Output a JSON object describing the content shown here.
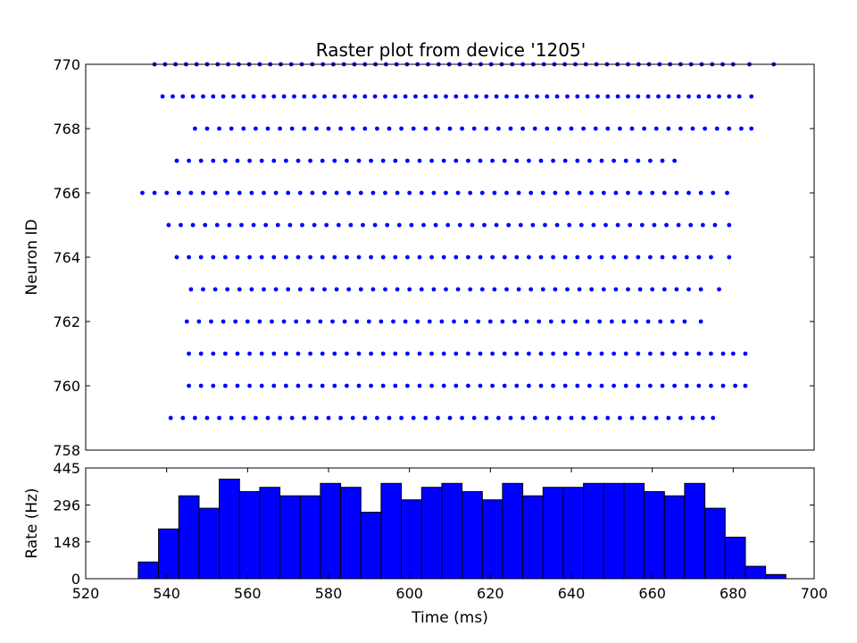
{
  "chart_data": [
    {
      "type": "scatter",
      "title": "Raster plot from device '1205'",
      "xlabel": "",
      "ylabel": "Neuron ID",
      "xlim": [
        520,
        700
      ],
      "ylim": [
        758,
        770
      ],
      "yticks": [
        758,
        760,
        762,
        764,
        766,
        768,
        770
      ],
      "grid": false,
      "marker_color": "#0000ff",
      "series": [
        {
          "neuron": 770,
          "x": [
            537.0,
            539.6,
            542.2,
            544.8,
            547.4,
            550.0,
            552.6,
            555.2,
            557.8,
            560.4,
            563.0,
            565.6,
            568.2,
            570.8,
            573.4,
            576.0,
            578.6,
            581.2,
            583.8,
            586.4,
            589.0,
            591.6,
            594.2,
            596.8,
            599.4,
            602.0,
            604.6,
            607.2,
            609.8,
            612.4,
            615.0,
            617.6,
            620.2,
            622.8,
            625.4,
            628.0,
            630.6,
            633.2,
            635.8,
            638.4,
            641.0,
            643.6,
            646.2,
            648.8,
            651.4,
            654.0,
            656.6,
            659.2,
            661.8,
            664.4,
            667.0,
            669.6,
            672.2,
            674.8,
            677.4,
            680.0,
            684.0,
            690.0
          ]
        },
        {
          "neuron": 769,
          "x": [
            539.0,
            541.5,
            544.0,
            546.5,
            549.0,
            551.5,
            554.0,
            556.5,
            559.0,
            561.5,
            564.0,
            566.5,
            569.0,
            571.5,
            574.0,
            576.5,
            579.0,
            581.5,
            584.0,
            586.5,
            589.0,
            591.5,
            594.0,
            596.5,
            599.0,
            601.5,
            604.0,
            606.5,
            609.0,
            611.5,
            614.0,
            616.5,
            619.0,
            621.5,
            624.0,
            626.5,
            629.0,
            631.5,
            634.0,
            636.5,
            639.0,
            641.5,
            644.0,
            646.5,
            649.0,
            651.5,
            654.0,
            656.5,
            659.0,
            661.5,
            664.0,
            666.5,
            669.0,
            671.5,
            674.0,
            676.5,
            679.0,
            681.5,
            684.5
          ]
        },
        {
          "neuron": 768,
          "x": [
            547.0,
            550.0,
            553.0,
            556.0,
            559.0,
            562.0,
            565.0,
            568.0,
            571.0,
            574.0,
            577.0,
            580.0,
            583.0,
            586.0,
            589.0,
            592.0,
            595.0,
            598.0,
            601.0,
            604.0,
            607.0,
            610.0,
            613.0,
            616.0,
            619.0,
            622.0,
            625.0,
            628.0,
            631.0,
            634.0,
            637.0,
            640.0,
            643.0,
            646.0,
            649.0,
            652.0,
            655.0,
            658.0,
            661.0,
            664.0,
            667.0,
            670.0,
            673.0,
            676.0,
            679.0,
            682.0,
            684.5
          ]
        },
        {
          "neuron": 767,
          "x": [
            542.5,
            545.5,
            548.5,
            551.5,
            554.5,
            557.5,
            560.5,
            563.5,
            566.5,
            569.5,
            572.5,
            575.5,
            578.5,
            581.5,
            584.5,
            587.5,
            590.5,
            593.5,
            596.5,
            599.5,
            602.5,
            605.5,
            608.5,
            611.5,
            614.5,
            617.5,
            620.5,
            623.5,
            626.5,
            629.5,
            632.5,
            635.5,
            638.5,
            641.5,
            644.5,
            647.5,
            650.5,
            653.5,
            656.5,
            659.5,
            662.5,
            665.5
          ]
        },
        {
          "neuron": 766,
          "x": [
            534.0,
            537.0,
            540.0,
            543.0,
            546.0,
            549.0,
            552.0,
            555.0,
            558.0,
            561.0,
            564.0,
            567.0,
            570.0,
            573.0,
            576.0,
            579.0,
            582.0,
            585.0,
            588.0,
            591.0,
            594.0,
            597.0,
            600.0,
            603.0,
            606.0,
            609.0,
            612.0,
            615.0,
            618.0,
            621.0,
            624.0,
            627.0,
            630.0,
            633.0,
            636.0,
            639.0,
            642.0,
            645.0,
            648.0,
            651.0,
            654.0,
            657.0,
            660.0,
            663.0,
            666.0,
            669.0,
            672.0,
            675.0,
            678.5
          ]
        },
        {
          "neuron": 765,
          "x": [
            540.5,
            543.5,
            546.5,
            549.5,
            552.5,
            555.5,
            558.5,
            561.5,
            564.5,
            567.5,
            570.5,
            573.5,
            576.5,
            579.5,
            582.5,
            585.5,
            588.5,
            591.5,
            594.5,
            597.5,
            600.5,
            603.5,
            606.5,
            609.5,
            612.5,
            615.5,
            618.5,
            621.5,
            624.5,
            627.5,
            630.5,
            633.5,
            636.5,
            639.5,
            642.5,
            645.5,
            648.5,
            651.5,
            654.5,
            657.5,
            660.5,
            663.5,
            666.5,
            669.5,
            672.5,
            675.5,
            679.0
          ]
        },
        {
          "neuron": 764,
          "x": [
            542.5,
            545.5,
            548.5,
            551.5,
            554.5,
            557.5,
            560.5,
            563.5,
            566.5,
            569.5,
            572.5,
            575.5,
            578.5,
            581.5,
            584.5,
            587.5,
            590.5,
            593.5,
            596.5,
            599.5,
            602.5,
            605.5,
            608.5,
            611.5,
            614.5,
            617.5,
            620.5,
            623.5,
            626.5,
            629.5,
            632.5,
            635.5,
            638.5,
            641.5,
            644.5,
            647.5,
            650.5,
            653.5,
            656.5,
            659.5,
            662.5,
            665.5,
            668.5,
            671.5,
            674.5,
            679.0
          ]
        },
        {
          "neuron": 763,
          "x": [
            546.0,
            549.0,
            552.0,
            555.0,
            558.0,
            561.0,
            564.0,
            567.0,
            570.0,
            573.0,
            576.0,
            579.0,
            582.0,
            585.0,
            588.0,
            591.0,
            594.0,
            597.0,
            600.0,
            603.0,
            606.0,
            609.0,
            612.0,
            615.0,
            618.0,
            621.0,
            624.0,
            627.0,
            630.0,
            633.0,
            636.0,
            639.0,
            642.0,
            645.0,
            648.0,
            651.0,
            654.0,
            657.0,
            660.0,
            663.0,
            666.0,
            669.0,
            672.0,
            676.5
          ]
        },
        {
          "neuron": 762,
          "x": [
            545.0,
            548.0,
            551.0,
            554.0,
            557.0,
            560.0,
            563.0,
            566.0,
            569.0,
            572.0,
            575.0,
            578.0,
            581.0,
            584.0,
            587.0,
            590.0,
            593.0,
            596.0,
            599.0,
            602.0,
            605.0,
            608.0,
            611.0,
            614.0,
            617.0,
            620.0,
            623.0,
            626.0,
            629.0,
            632.0,
            635.0,
            638.0,
            641.0,
            644.0,
            647.0,
            650.0,
            653.0,
            656.0,
            659.0,
            662.0,
            665.0,
            668.0,
            672.0
          ]
        },
        {
          "neuron": 761,
          "x": [
            545.5,
            548.5,
            551.5,
            554.5,
            557.5,
            560.5,
            563.5,
            566.5,
            569.5,
            572.5,
            575.5,
            578.5,
            581.5,
            584.5,
            587.5,
            590.5,
            593.5,
            596.5,
            599.5,
            602.5,
            605.5,
            608.5,
            611.5,
            614.5,
            617.5,
            620.5,
            623.5,
            626.5,
            629.5,
            632.5,
            635.5,
            638.5,
            641.5,
            644.5,
            647.5,
            650.5,
            653.5,
            656.5,
            659.5,
            662.5,
            665.5,
            668.5,
            671.5,
            674.5,
            677.5,
            680.0,
            683.0
          ]
        },
        {
          "neuron": 760,
          "x": [
            545.5,
            548.5,
            551.5,
            554.5,
            557.5,
            560.5,
            563.5,
            566.5,
            569.5,
            572.5,
            575.5,
            578.5,
            581.5,
            584.5,
            587.5,
            590.5,
            593.5,
            596.5,
            599.5,
            602.5,
            605.5,
            608.5,
            611.5,
            614.5,
            617.5,
            620.5,
            623.5,
            626.5,
            629.5,
            632.5,
            635.5,
            638.5,
            641.5,
            644.5,
            647.5,
            650.5,
            653.5,
            656.5,
            659.5,
            662.5,
            665.5,
            668.5,
            671.5,
            674.5,
            677.5,
            680.5,
            683.0
          ]
        },
        {
          "neuron": 759,
          "x": [
            541.0,
            544.0,
            547.0,
            550.0,
            553.0,
            556.0,
            559.0,
            562.0,
            565.0,
            568.0,
            571.0,
            574.0,
            577.0,
            580.0,
            583.0,
            586.0,
            589.0,
            592.0,
            595.0,
            598.0,
            601.0,
            604.0,
            607.0,
            610.0,
            613.0,
            616.0,
            619.0,
            622.0,
            625.0,
            628.0,
            631.0,
            634.0,
            637.0,
            640.0,
            643.0,
            646.0,
            649.0,
            652.0,
            655.0,
            658.0,
            661.0,
            664.0,
            667.0,
            670.0,
            672.5,
            675.0
          ]
        }
      ]
    },
    {
      "type": "bar",
      "title": "",
      "xlabel": "Time (ms)",
      "ylabel": "Rate (Hz)",
      "xlim": [
        520,
        700
      ],
      "ylim": [
        0,
        445
      ],
      "xticks": [
        520,
        540,
        560,
        580,
        600,
        620,
        640,
        660,
        680,
        700
      ],
      "yticks": [
        0,
        148,
        296,
        445
      ],
      "bar_color": "#0000ff",
      "bin_width": 5,
      "bin_starts": [
        533,
        538,
        543,
        548,
        553,
        558,
        563,
        568,
        573,
        578,
        583,
        588,
        593,
        598,
        603,
        608,
        613,
        618,
        623,
        628,
        633,
        638,
        643,
        648,
        653,
        658,
        663,
        668,
        673,
        678,
        683,
        688
      ],
      "values": [
        67,
        200,
        333,
        283,
        400,
        350,
        367,
        333,
        333,
        383,
        367,
        267,
        383,
        317,
        367,
        383,
        350,
        317,
        383,
        333,
        367,
        367,
        383,
        383,
        383,
        350,
        333,
        383,
        283,
        167,
        50,
        17
      ]
    }
  ]
}
